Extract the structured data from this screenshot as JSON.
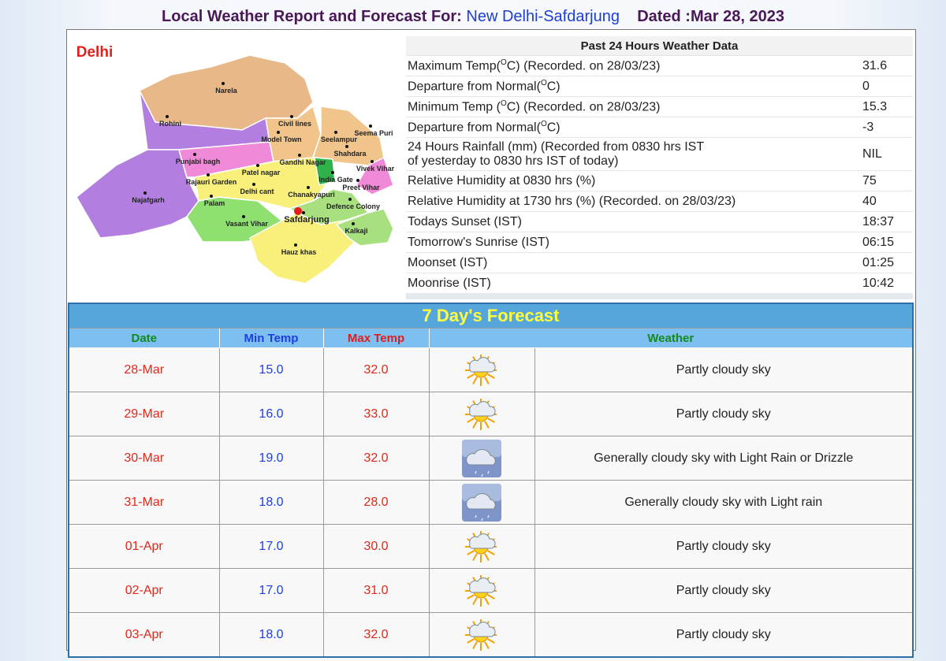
{
  "header": {
    "title": "Local Weather Report and Forecast For:",
    "station": "New Delhi-Safdarjung",
    "dated": "Dated :Mar 28, 2023"
  },
  "map": {
    "title": "Delhi",
    "places": [
      "Narela",
      "Rohini",
      "Civil lines",
      "Model Town",
      "Seema Puri",
      "Seelampur",
      "Shahdara",
      "Punjabi bagh",
      "Patel nagar",
      "Gandhi Nagar",
      "Vivek Vihar",
      "Rajauri Garden",
      "India Gate",
      "Preet Vihar",
      "Delhi cant",
      "Chanakyapuri",
      "Najafgarh",
      "Palam",
      "Defence Colony",
      "Safdarjung",
      "Vasant Vihar",
      "Kalkaji",
      "Hauz khas"
    ]
  },
  "past24": {
    "title": "Past 24 Hours Weather Data",
    "rows": [
      {
        "label": "Maximum Temp(",
        "sup": "O",
        "label_end": "C) (Recorded. on 28/03/23)",
        "value": "31.6"
      },
      {
        "label": "Departure from Normal(",
        "sup": "O",
        "label_end": "C)",
        "value": "0"
      },
      {
        "label": "Minimum Temp (",
        "sup": "O",
        "label_end": "C) (Recorded. on 28/03/23)",
        "value": "15.3"
      },
      {
        "label": "Departure from Normal(",
        "sup": "O",
        "label_end": "C)",
        "value": "-3"
      },
      {
        "label": "24 Hours Rainfall (mm) (Recorded from 0830 hrs IST",
        "label_line2": "of yesterday to 0830 hrs IST of today)",
        "value": "NIL"
      },
      {
        "label": "Relative Humidity at 0830 hrs (%)",
        "value": "75"
      },
      {
        "label": "Relative Humidity at 1730 hrs (%) (Recorded. on 28/03/23)",
        "value": "40"
      },
      {
        "label": "Todays Sunset (IST)",
        "value": "18:37"
      },
      {
        "label": "Tomorrow's Sunrise (IST)",
        "value": "06:15"
      },
      {
        "label": "Moonset (IST)",
        "value": "01:25"
      },
      {
        "label": "Moonrise (IST)",
        "value": "10:42"
      }
    ]
  },
  "forecast": {
    "title": "7 Day's Forecast",
    "columns": [
      "Date",
      "Min Temp",
      "Max Temp",
      "Weather"
    ],
    "rows": [
      [
        "28-Mar",
        "15.0",
        "32.0",
        "Partly cloudy sky"
      ],
      [
        "29-Mar",
        "16.0",
        "33.0",
        "Partly cloudy sky"
      ],
      [
        "30-Mar",
        "19.0",
        "32.0",
        "Generally cloudy sky with Light Rain or Drizzle"
      ],
      [
        "31-Mar",
        "18.0",
        "28.0",
        "Generally cloudy sky with Light rain"
      ],
      [
        "01-Apr",
        "17.0",
        "30.0",
        "Partly cloudy sky"
      ],
      [
        "02-Apr",
        "17.0",
        "31.0",
        "Partly cloudy sky"
      ],
      [
        "03-Apr",
        "18.0",
        "32.0",
        "Partly cloudy sky"
      ]
    ]
  }
}
